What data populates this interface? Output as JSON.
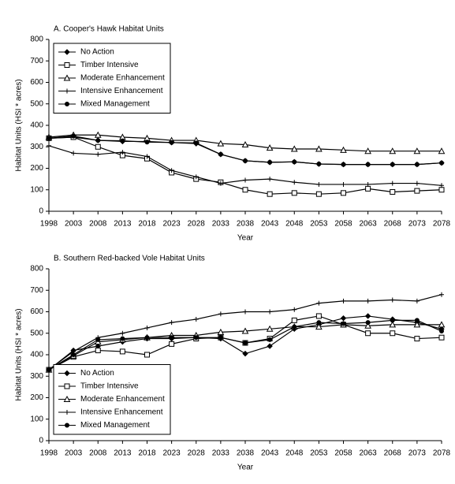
{
  "chart_data": [
    {
      "type": "line",
      "title": "A. Cooper's Hawk Habitat Units",
      "y_label": "Habitat Units (HSI * acres)",
      "x_label": "Year",
      "categories": [
        "1998",
        "2003",
        "2008",
        "2013",
        "2018",
        "2023",
        "2028",
        "2033",
        "2038",
        "2043",
        "2048",
        "2053",
        "2058",
        "2063",
        "2068",
        "2073",
        "2078"
      ],
      "ylim": [
        0,
        800
      ],
      "yticks": [
        0,
        100,
        200,
        300,
        400,
        500,
        600,
        700,
        800
      ],
      "legend": "upper left",
      "series": [
        {
          "name": "No Action",
          "color": "#000000",
          "marker": "diamond",
          "values": [
            340,
            345,
            330,
            325,
            325,
            320,
            315,
            265,
            235,
            228,
            230,
            220,
            218,
            218,
            218,
            218,
            225
          ]
        },
        {
          "name": "Timber Intensive",
          "color": "#000000",
          "marker": "square",
          "values": [
            340,
            345,
            300,
            260,
            245,
            180,
            150,
            135,
            100,
            80,
            85,
            80,
            85,
            105,
            90,
            95,
            100
          ]
        },
        {
          "name": "Moderate Enhancement",
          "color": "#000000",
          "marker": "triangle",
          "values": [
            345,
            355,
            355,
            345,
            340,
            330,
            330,
            315,
            310,
            295,
            290,
            290,
            285,
            280,
            280,
            280,
            280
          ]
        },
        {
          "name": "Intensive Enhancement",
          "color": "#000000",
          "marker": "plus",
          "values": [
            305,
            270,
            265,
            275,
            255,
            190,
            160,
            130,
            145,
            150,
            135,
            125,
            125,
            125,
            130,
            130,
            120
          ]
        },
        {
          "name": "Mixed Management",
          "color": "#000000",
          "marker": "circle",
          "values": [
            340,
            350,
            330,
            328,
            322,
            320,
            318,
            265,
            235,
            228,
            230,
            220,
            218,
            218,
            218,
            218,
            225
          ]
        }
      ]
    },
    {
      "type": "line",
      "title": "B. Southern Red-backed Vole Habitat Units",
      "y_label": "Habitat Units (HSI * acres)",
      "x_label": "Year",
      "categories": [
        "1998",
        "2003",
        "2008",
        "2013",
        "2018",
        "2023",
        "2028",
        "2033",
        "2038",
        "2043",
        "2048",
        "2053",
        "2058",
        "2063",
        "2068",
        "2073",
        "2078"
      ],
      "ylim": [
        0,
        800
      ],
      "yticks": [
        0,
        100,
        200,
        300,
        400,
        500,
        600,
        700,
        800
      ],
      "legend": "lower left",
      "series": [
        {
          "name": "No Action",
          "color": "#000000",
          "marker": "diamond",
          "values": [
            330,
            420,
            440,
            460,
            475,
            475,
            480,
            475,
            405,
            440,
            520,
            540,
            570,
            580,
            565,
            550,
            520
          ]
        },
        {
          "name": "Timber Intensive",
          "color": "#000000",
          "marker": "square",
          "values": [
            330,
            390,
            420,
            415,
            400,
            450,
            475,
            480,
            455,
            475,
            560,
            580,
            540,
            500,
            500,
            475,
            480
          ]
        },
        {
          "name": "Moderate Enhancement",
          "color": "#000000",
          "marker": "triangle",
          "values": [
            330,
            395,
            460,
            470,
            480,
            490,
            490,
            505,
            510,
            520,
            530,
            530,
            540,
            535,
            540,
            540,
            540
          ]
        },
        {
          "name": "Intensive Enhancement",
          "color": "#000000",
          "marker": "plus",
          "values": [
            330,
            415,
            480,
            500,
            525,
            550,
            565,
            590,
            600,
            600,
            610,
            640,
            650,
            650,
            655,
            650,
            680
          ]
        },
        {
          "name": "Mixed Management",
          "color": "#000000",
          "marker": "circle",
          "values": [
            330,
            400,
            470,
            475,
            480,
            480,
            480,
            480,
            455,
            470,
            530,
            550,
            545,
            550,
            560,
            560,
            510
          ]
        }
      ]
    }
  ]
}
